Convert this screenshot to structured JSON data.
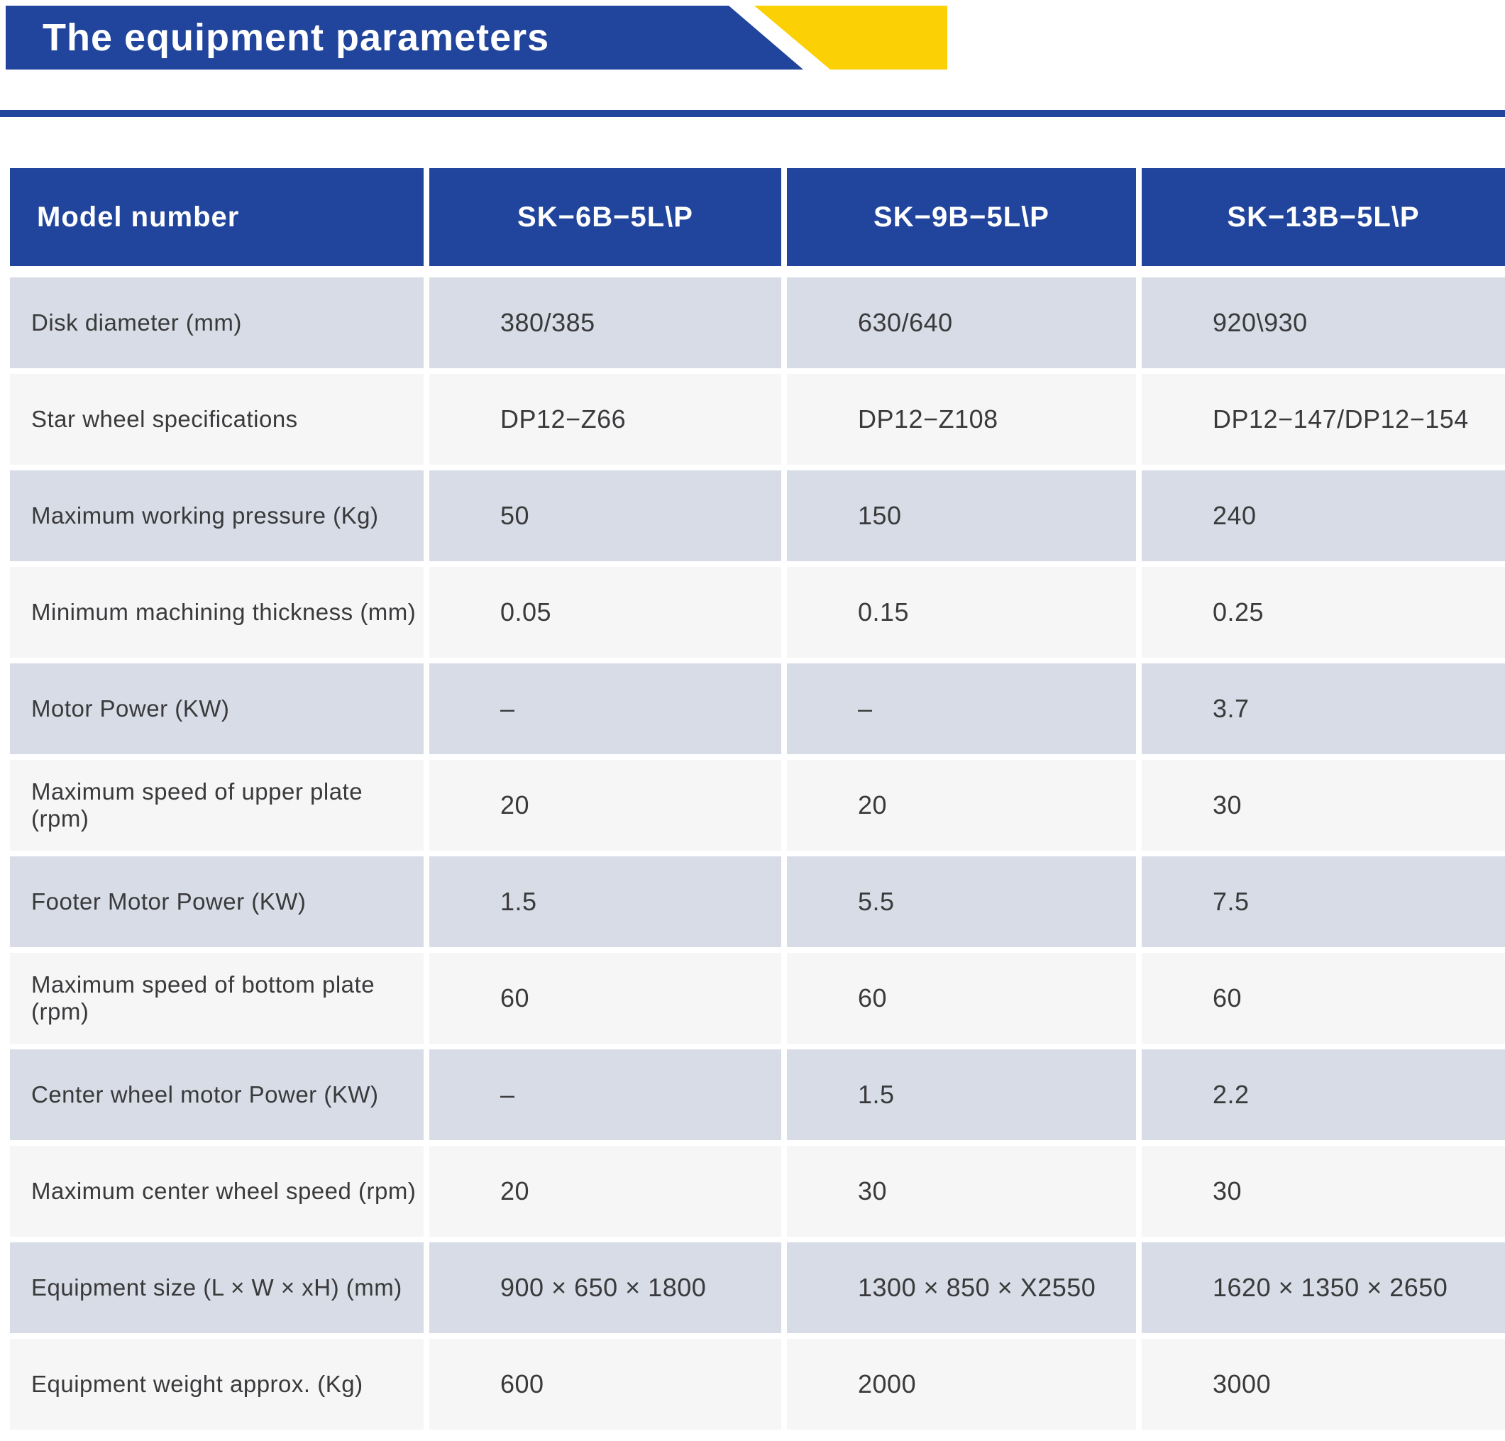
{
  "page": {
    "title": "The equipment parameters"
  },
  "colors": {
    "primary_blue": "#21459c",
    "accent_yellow": "#fbd106",
    "row_dark": "#d7dce6",
    "row_light": "#f6f6f7",
    "text_dark": "#3a3a3c",
    "header_text": "#ffffff"
  },
  "table": {
    "header": {
      "label": "Model number",
      "models": [
        "SK−6B−5L\\P",
        "SK−9B−5L\\P",
        "SK−13B−5L\\P"
      ]
    },
    "rows": [
      {
        "label": "Disk diameter (mm)",
        "values": [
          "380/385",
          "630/640",
          "920\\930"
        ]
      },
      {
        "label": "Star wheel specifications",
        "values": [
          "DP12−Z66",
          "DP12−Z108",
          "DP12−147/DP12−154"
        ]
      },
      {
        "label": "Maximum working pressure (Kg)",
        "values": [
          "50",
          "150",
          "240"
        ]
      },
      {
        "label": "Minimum machining thickness (mm)",
        "values": [
          "0.05",
          "0.15",
          "0.25"
        ]
      },
      {
        "label": "Motor Power (KW)",
        "values": [
          "–",
          "–",
          "3.7"
        ]
      },
      {
        "label": "Maximum speed of upper plate (rpm)",
        "values": [
          "20",
          "20",
          "30"
        ]
      },
      {
        "label": "Footer Motor Power (KW)",
        "values": [
          "1.5",
          "5.5",
          "7.5"
        ]
      },
      {
        "label": "Maximum speed of bottom plate (rpm)",
        "values": [
          "60",
          "60",
          "60"
        ]
      },
      {
        "label": "Center wheel motor Power (KW)",
        "values": [
          "–",
          "1.5",
          "2.2"
        ]
      },
      {
        "label": "Maximum center wheel speed (rpm)",
        "values": [
          "20",
          "30",
          "30"
        ]
      },
      {
        "label": "Equipment size (L × W × xH) (mm)",
        "values": [
          "900 × 650 × 1800",
          "1300 × 850 × X2550",
          "1620 × 1350 × 2650"
        ]
      },
      {
        "label": "Equipment weight approx. (Kg)",
        "values": [
          "600",
          "2000",
          "3000"
        ]
      }
    ]
  }
}
